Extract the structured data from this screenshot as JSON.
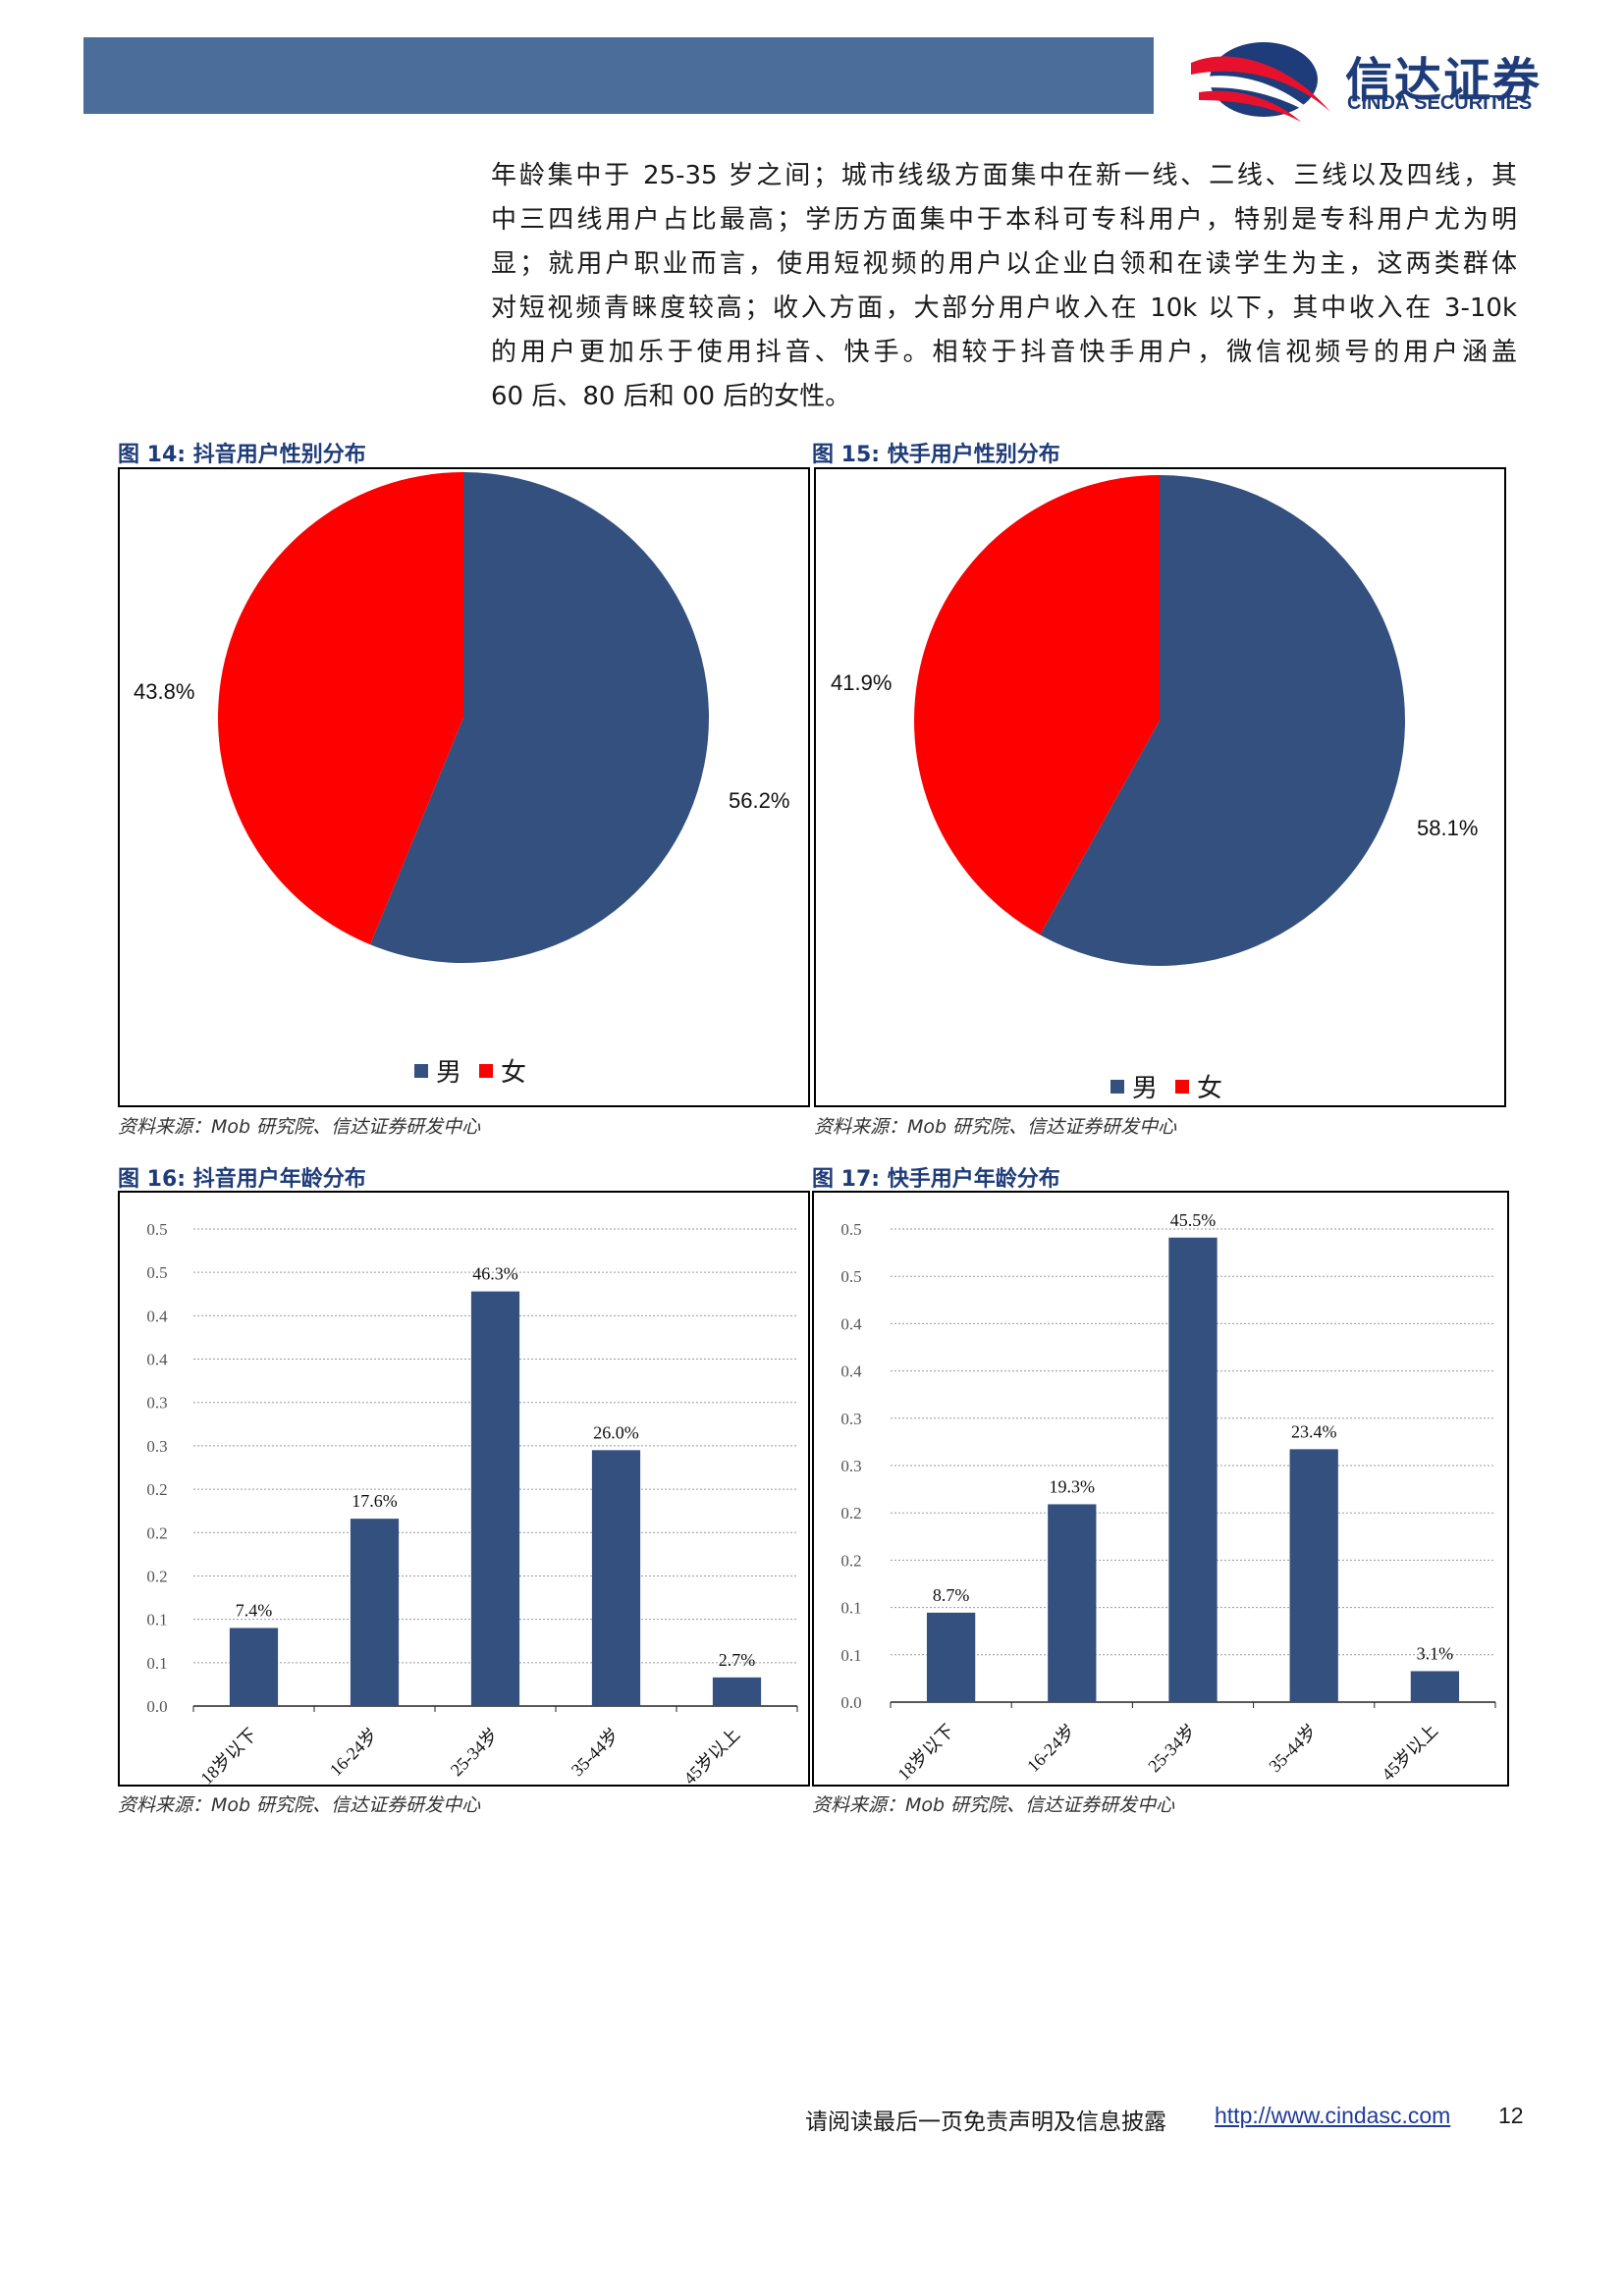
{
  "header": {
    "logo_cn": "信达证券",
    "logo_en": "CINDA SECURITIES"
  },
  "paragraph": {
    "lines": [
      "年龄集中于 25-35 岁之间；城市线级方面集中在新一线、二线、三线以及四线，其",
      "中三四线用户占比最高；学历方面集中于本科可专科用户，特别是专科用户尤为明",
      "显；就用户职业而言，使用短视频的用户以企业白领和在读学生为主，这两类群体",
      "对短视频青睐度较高；收入方面，大部分用户收入在 10k 以下，其中收入在 3-10k",
      "的用户更加乐于使用抖音、快手。相较于抖音快手用户，微信视频号的用户涵盖",
      "60 后、80 后和 00 后的女性。"
    ]
  },
  "figures": {
    "fig14": {
      "caption": "图 14:  抖音用户性别分布",
      "source": "资料来源：Mob 研究院、信达证券研发中心"
    },
    "fig15": {
      "caption": "图 15:  快手用户性别分布",
      "source": "资料来源：Mob 研究院、信达证券研发中心"
    },
    "fig16": {
      "caption": "图 16:  抖音用户年龄分布",
      "source": "资料来源：Mob 研究院、信达证券研发中心"
    },
    "fig17": {
      "caption": "图 17:  快手用户年龄分布",
      "source": "资料来源：Mob 研究院、信达证券研发中心"
    }
  },
  "colors": {
    "series_male": "#34507f",
    "series_female": "#ff0000",
    "header_bar": "#4a6e99",
    "brand": "#1f3c7a"
  },
  "chart_data": [
    {
      "id": "fig14",
      "type": "pie",
      "title": "",
      "categories": [
        "男",
        "女"
      ],
      "values": [
        56.2,
        43.8
      ],
      "labels": [
        "56.2%",
        "43.8%"
      ],
      "colors": [
        "#34507f",
        "#ff0000"
      ],
      "legend": "bottom"
    },
    {
      "id": "fig15",
      "type": "pie",
      "title": "",
      "categories": [
        "男",
        "女"
      ],
      "values": [
        58.1,
        41.9
      ],
      "labels": [
        "58.1%",
        "41.9%"
      ],
      "colors": [
        "#34507f",
        "#ff0000"
      ],
      "legend": "bottom"
    },
    {
      "id": "fig16",
      "type": "bar",
      "title": "",
      "categories": [
        "18岁以下",
        "16-24岁",
        "25-34岁",
        "35-44岁",
        "45岁以上"
      ],
      "values": [
        0.074,
        0.176,
        0.463,
        0.26,
        0.027
      ],
      "labels": [
        "7.4%",
        "17.6%",
        "46.3%",
        "26.0%",
        "2.7%"
      ],
      "bar_heights_visual": [
        0.09,
        0.216,
        0.478,
        0.295,
        0.033
      ],
      "yticks": [
        "0.0",
        "0.1",
        "0.1",
        "0.2",
        "0.2",
        "0.2",
        "0.3",
        "0.3",
        "0.4",
        "0.4",
        "0.5",
        "0.5"
      ],
      "ylim": [
        0,
        0.55
      ],
      "grid": true,
      "color": "#34507f"
    },
    {
      "id": "fig17",
      "type": "bar",
      "title": "",
      "categories": [
        "18岁以下",
        "16-24岁",
        "25-34岁",
        "35-44岁",
        "45岁以上"
      ],
      "values": [
        0.087,
        0.193,
        0.455,
        0.234,
        0.031
      ],
      "labels": [
        "8.7%",
        "19.3%",
        "45.5%",
        "23.4%",
        "3.1%"
      ],
      "bar_heights_visual": [
        0.104,
        0.23,
        0.54,
        0.294,
        0.036
      ],
      "yticks": [
        "0.0",
        "0.1",
        "0.1",
        "0.2",
        "0.2",
        "0.3",
        "0.3",
        "0.4",
        "0.4",
        "0.5",
        "0.5"
      ],
      "ylim": [
        0,
        0.55
      ],
      "grid": true,
      "color": "#34507f"
    }
  ],
  "footer": {
    "text": "请阅读最后一页免责声明及信息披露",
    "link": "http://www.cindasc.com",
    "page": "12"
  }
}
